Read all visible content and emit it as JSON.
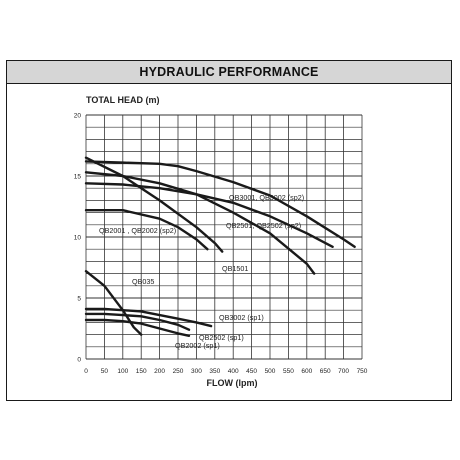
{
  "panel": {
    "title": "HYDRAULIC PERFORMANCE"
  },
  "chart_data": {
    "type": "line",
    "ylabel": "TOTAL HEAD (m)",
    "xlabel": "FLOW (lpm)",
    "xlim": [
      0,
      750
    ],
    "ylim": [
      0,
      20
    ],
    "x_ticks": [
      0,
      50,
      100,
      150,
      200,
      250,
      300,
      350,
      400,
      450,
      500,
      550,
      600,
      650,
      700,
      750
    ],
    "y_ticks": [
      0,
      5,
      10,
      15,
      20
    ],
    "grid": true,
    "line_color": "#1a1a1a",
    "series": [
      {
        "name": "QB3001, QB3002 (sp2)",
        "x": [
          0,
          100,
          200,
          250,
          300,
          400,
          500,
          600,
          700,
          730
        ],
        "y": [
          16.2,
          16.1,
          16.0,
          15.8,
          15.4,
          14.5,
          13.4,
          11.7,
          9.8,
          9.2
        ]
      },
      {
        "name": "QB2501, QB2502 (sp2)",
        "x": [
          0,
          100,
          200,
          300,
          400,
          500,
          600,
          670
        ],
        "y": [
          14.4,
          14.3,
          14.0,
          13.5,
          12.8,
          11.7,
          10.3,
          9.2
        ]
      },
      {
        "name": "QB1501",
        "x": [
          0,
          100,
          200,
          300,
          400,
          500,
          600,
          620
        ],
        "y": [
          15.3,
          15.0,
          14.4,
          13.5,
          12.0,
          10.3,
          7.8,
          7.0
        ]
      },
      {
        "name": "QB2001 , QB2002 (sp2)",
        "x": [
          0,
          100,
          200,
          300,
          350,
          370
        ],
        "y": [
          16.5,
          15.0,
          13.0,
          10.8,
          9.5,
          8.8
        ]
      },
      {
        "name": "QB2001 , QB2002 (sp2)",
        "x": [
          0,
          100,
          200,
          250,
          300,
          330
        ],
        "y": [
          12.2,
          12.2,
          11.5,
          10.8,
          9.8,
          9.0
        ]
      },
      {
        "name": "QB035",
        "x": [
          0,
          50,
          100,
          130,
          150
        ],
        "y": [
          7.2,
          6.0,
          4.0,
          2.6,
          2.0
        ]
      },
      {
        "name": "QB3002 (sp1)",
        "x": [
          0,
          50,
          100,
          150,
          200,
          250,
          300,
          340
        ],
        "y": [
          4.1,
          4.1,
          4.0,
          3.9,
          3.6,
          3.3,
          3.0,
          2.7
        ]
      },
      {
        "name": "QB2502 (sp1)",
        "x": [
          0,
          50,
          100,
          150,
          200,
          250,
          280
        ],
        "y": [
          3.7,
          3.7,
          3.6,
          3.5,
          3.2,
          2.8,
          2.4
        ]
      },
      {
        "name": "QB2002 (sp1)",
        "x": [
          0,
          50,
          100,
          150,
          200,
          250,
          280
        ],
        "y": [
          3.2,
          3.2,
          3.1,
          2.9,
          2.5,
          2.1,
          1.9
        ]
      }
    ],
    "annotations": [
      {
        "text": "QB3001, QB3002 (sp2)"
      },
      {
        "text": "QB2001 , QB2002 (sp2)"
      },
      {
        "text": "QB2501, QB2502 (sp2)"
      },
      {
        "text": "QB1501"
      },
      {
        "text": "QB035"
      },
      {
        "text": "QB3002 (sp1)"
      },
      {
        "text": "QB2502 (sp1)"
      },
      {
        "text": "QB2002 (sp1)"
      }
    ]
  }
}
